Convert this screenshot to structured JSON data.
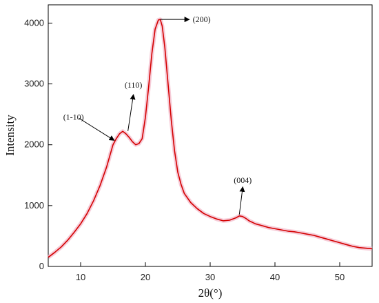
{
  "chart_data": {
    "type": "line",
    "title": "",
    "xlabel": "2θ(°)",
    "ylabel": "Intensity",
    "xlim": [
      5,
      55
    ],
    "ylim": [
      0,
      4300
    ],
    "x_ticks": [
      10,
      20,
      30,
      40,
      50
    ],
    "y_ticks": [
      0,
      1000,
      2000,
      3000,
      4000
    ],
    "grid": false,
    "legend": "none",
    "series": [
      {
        "color": "#d40000",
        "x": [
          5,
          6,
          7,
          8,
          9,
          10,
          11,
          12,
          13,
          14,
          15,
          15.5,
          16,
          16.5,
          17,
          17.5,
          18,
          18.5,
          19,
          19.5,
          20,
          20.5,
          21,
          21.5,
          22,
          22.3,
          22.6,
          23,
          23.5,
          24,
          24.5,
          25,
          25.5,
          26,
          27,
          28,
          29,
          30,
          31,
          32,
          33,
          34,
          34.5,
          35,
          35.5,
          36,
          37,
          38,
          39,
          40,
          41,
          42,
          43,
          44,
          45,
          46,
          47,
          48,
          49,
          50,
          51,
          52,
          53,
          54,
          55
        ],
        "y": [
          150,
          230,
          320,
          430,
          560,
          700,
          870,
          1080,
          1330,
          1630,
          2000,
          2100,
          2180,
          2220,
          2180,
          2120,
          2050,
          2000,
          2020,
          2100,
          2450,
          2950,
          3500,
          3900,
          4050,
          4060,
          3950,
          3600,
          3000,
          2400,
          1900,
          1550,
          1350,
          1200,
          1050,
          950,
          870,
          820,
          780,
          750,
          760,
          800,
          830,
          820,
          790,
          750,
          700,
          670,
          640,
          620,
          600,
          580,
          570,
          550,
          530,
          510,
          480,
          450,
          420,
          390,
          360,
          330,
          310,
          300,
          290
        ]
      }
    ],
    "annotations": [
      {
        "label": "(1-10)",
        "x": 15.5,
        "y": 2050
      },
      {
        "label": "(110)",
        "x": 17.3,
        "y": 2200
      },
      {
        "label": "(200)",
        "x": 22.3,
        "y": 4060
      },
      {
        "label": "(004)",
        "x": 34.5,
        "y": 830
      }
    ]
  }
}
